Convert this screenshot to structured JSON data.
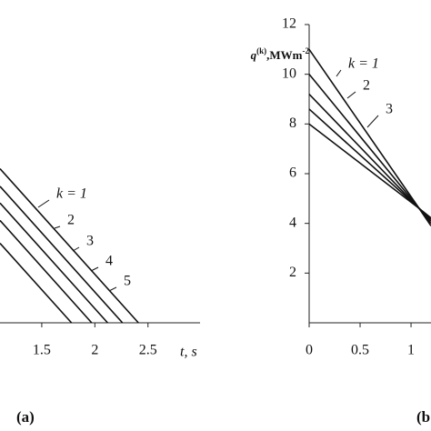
{
  "chart_data": [
    {
      "type": "line",
      "panel_label": "(a)",
      "xlabel": "t, s",
      "xlim": [
        1.107,
        2.99
      ],
      "xticks": [
        1.5,
        2,
        2.5
      ],
      "ylim": [
        0,
        12
      ],
      "color": "#111111",
      "annotations": [
        "k = 1",
        "2",
        "3",
        "4",
        "5"
      ],
      "series": [
        {
          "x": [
            1.107,
            2.41
          ],
          "values": [
            6.2,
            0
          ]
        },
        {
          "x": [
            1.107,
            2.26
          ],
          "values": [
            5.49,
            0
          ]
        },
        {
          "x": [
            1.107,
            2.12
          ],
          "values": [
            4.82,
            0
          ]
        },
        {
          "x": [
            1.107,
            1.97
          ],
          "values": [
            4.12,
            0
          ]
        },
        {
          "x": [
            1.107,
            1.78
          ],
          "values": [
            3.2,
            0
          ]
        }
      ]
    },
    {
      "type": "line",
      "panel_label": "(b",
      "ylabel": {
        "base": "q",
        "sup": "(k)",
        "unit": ",MWm",
        "unit_sup": "-2"
      },
      "xlim": [
        0,
        1.196
      ],
      "xticks": [
        0,
        0.5,
        1
      ],
      "ylim": [
        0,
        12
      ],
      "yticks": [
        2,
        4,
        6,
        8,
        10,
        12
      ],
      "color": "#111111",
      "annotations": [
        "k = 1",
        "2",
        "3"
      ],
      "series": [
        {
          "x": [
            0,
            1.08,
            1.196
          ],
          "values": [
            11.0,
            4.6,
            3.9
          ]
        },
        {
          "x": [
            0,
            1.08,
            1.196
          ],
          "values": [
            10.0,
            4.6,
            4.0
          ]
        },
        {
          "x": [
            0,
            1.08,
            1.196
          ],
          "values": [
            9.2,
            4.6,
            4.09
          ]
        },
        {
          "x": [
            0,
            1.08,
            1.196
          ],
          "values": [
            8.6,
            4.6,
            4.16
          ]
        },
        {
          "x": [
            0,
            1.08,
            1.196
          ],
          "values": [
            8.0,
            4.6,
            4.22
          ]
        }
      ]
    }
  ]
}
